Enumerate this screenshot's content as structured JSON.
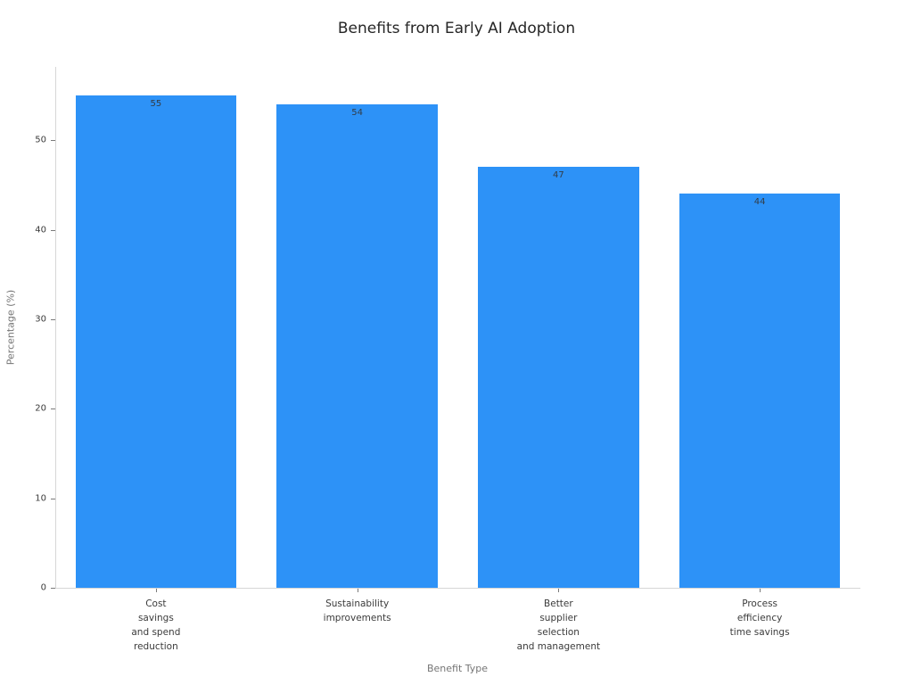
{
  "chart_data": {
    "type": "bar",
    "title": "Benefits from Early AI Adoption",
    "xlabel": "Benefit Type",
    "ylabel": "Percentage (%)",
    "categories": [
      "Cost savings and spend reduction",
      "Sustainability improvements",
      "Better supplier selection and management",
      "Process efficiency time savings"
    ],
    "category_label_lines": [
      [
        "Cost",
        "savings",
        "and spend",
        "reduction"
      ],
      [
        "Sustainability",
        "improvements"
      ],
      [
        "Better",
        "supplier",
        "selection",
        "and management"
      ],
      [
        "Process",
        "efficiency",
        "time savings"
      ]
    ],
    "values": [
      55,
      54,
      47,
      44
    ],
    "value_labels": [
      "55",
      "54",
      "47",
      "44"
    ],
    "yticks": [
      0,
      10,
      20,
      30,
      40,
      50
    ],
    "ylim": [
      0,
      58.2
    ],
    "grid": false,
    "legend": null,
    "colors": {
      "bar": "#2d92f7",
      "spine": "#d6d6d6",
      "tick": "#7a7a7a",
      "title_text": "#262626",
      "axis_title_text": "#757575",
      "tick_label_text": "#3b3b3b",
      "value_label_text": "#323c46",
      "background": "#ffffff"
    }
  }
}
